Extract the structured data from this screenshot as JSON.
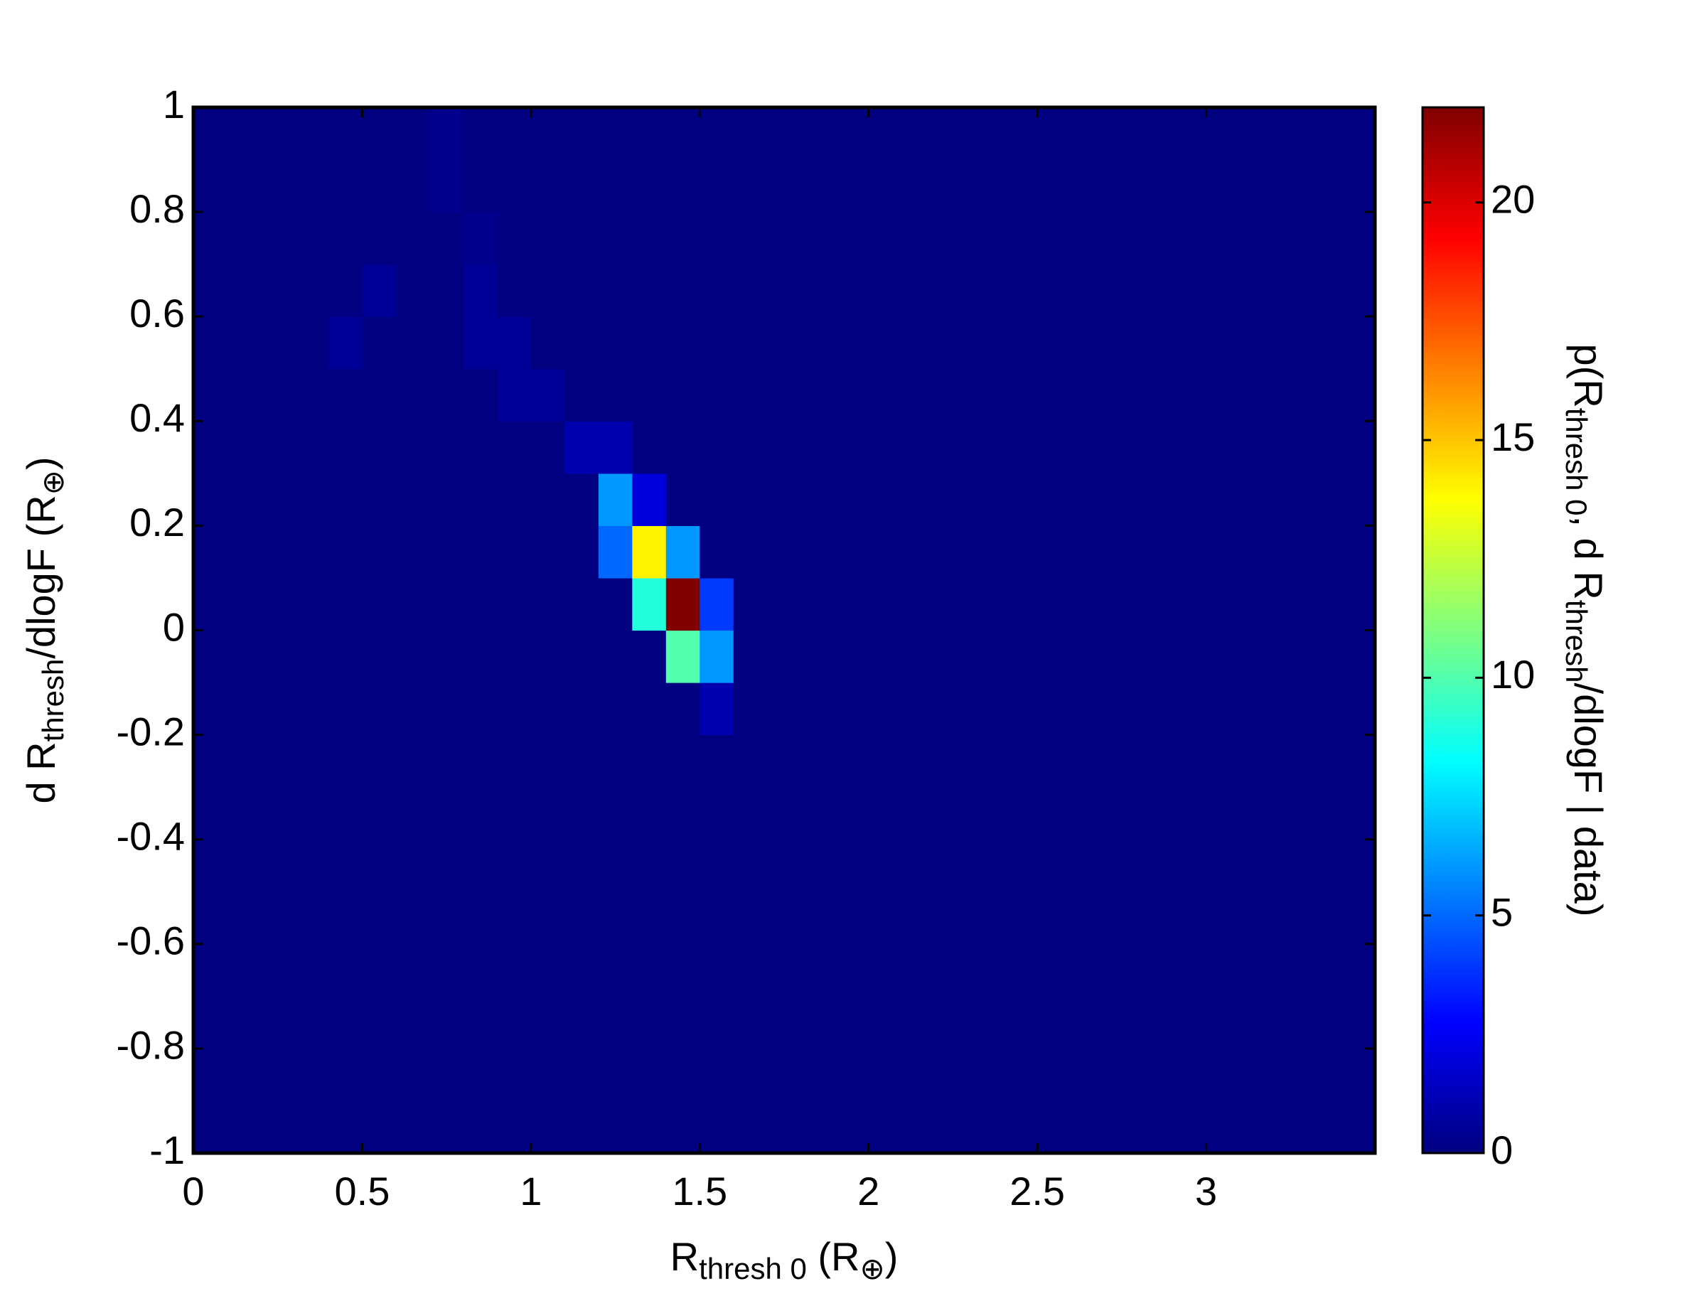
{
  "chart_data": {
    "type": "heatmap",
    "xlabel": [
      "R",
      "thresh 0",
      " (R",
      "⊕",
      ")"
    ],
    "ylabel": [
      "d R",
      "thresh",
      "/dlogF (R",
      "⊕",
      ")"
    ],
    "colorbar_label": [
      "p(R",
      "thresh 0",
      ", d R",
      "thresh",
      "/dlogF | data)"
    ],
    "colormap": "jet",
    "xlim": [
      0,
      3.5
    ],
    "xticks": [
      0,
      0.5,
      1,
      1.5,
      2,
      2.5,
      3
    ],
    "ylim": [
      -1,
      1
    ],
    "yticks": [
      -1,
      -0.8,
      -0.6,
      -0.4,
      -0.2,
      0,
      0.2,
      0.4,
      0.6,
      0.8,
      1
    ],
    "clim": [
      0,
      22
    ],
    "cticks": [
      0,
      5,
      10,
      15,
      20
    ],
    "xbins": [
      0,
      0.1,
      0.2,
      0.3,
      0.4,
      0.5,
      0.6,
      0.7,
      0.8,
      0.9,
      1,
      1.1,
      1.2,
      1.3,
      1.4,
      1.5,
      1.6,
      1.7,
      1.8,
      1.9,
      2,
      2.1,
      2.2,
      2.3,
      2.4,
      2.5,
      2.6,
      2.7,
      2.8,
      2.9,
      3,
      3.1,
      3.2,
      3.3,
      3.4,
      3.5
    ],
    "ybins": [
      -1,
      -0.9,
      -0.8,
      -0.7,
      -0.6,
      -0.5,
      -0.4,
      -0.3,
      -0.2,
      -0.1,
      0,
      0.1,
      0.2,
      0.3,
      0.4,
      0.5,
      0.6,
      0.7,
      0.8,
      0.9,
      1
    ],
    "z": [
      [
        0,
        0,
        0,
        0,
        0,
        0,
        0,
        0,
        0,
        0,
        0,
        0,
        0,
        0,
        0,
        0,
        0,
        0,
        0,
        0,
        0,
        0,
        0,
        0,
        0,
        0,
        0,
        0,
        0,
        0,
        0,
        0,
        0,
        0,
        0
      ],
      [
        0,
        0,
        0,
        0,
        0,
        0,
        0,
        0,
        0,
        0,
        0,
        0,
        0,
        0,
        0,
        0,
        0,
        0,
        0,
        0,
        0,
        0,
        0,
        0,
        0,
        0,
        0,
        0,
        0,
        0,
        0,
        0,
        0,
        0,
        0
      ],
      [
        0,
        0,
        0,
        0,
        0,
        0,
        0,
        0,
        0,
        0,
        0,
        0,
        0,
        0,
        0,
        0,
        0,
        0,
        0,
        0,
        0,
        0,
        0,
        0,
        0,
        0,
        0,
        0,
        0,
        0,
        0,
        0,
        0,
        0,
        0
      ],
      [
        0,
        0,
        0,
        0,
        0,
        0,
        0,
        0,
        0,
        0,
        0,
        0,
        0,
        0,
        0,
        0,
        0,
        0,
        0,
        0,
        0,
        0,
        0,
        0,
        0,
        0,
        0,
        0,
        0,
        0,
        0,
        0,
        0,
        0,
        0
      ],
      [
        0,
        0,
        0,
        0,
        0,
        0,
        0,
        0,
        0,
        0,
        0,
        0,
        0,
        0,
        0,
        0,
        0,
        0,
        0,
        0,
        0,
        0,
        0,
        0,
        0,
        0,
        0,
        0,
        0,
        0,
        0,
        0,
        0,
        0,
        0
      ],
      [
        0,
        0,
        0,
        0,
        0,
        0,
        0,
        0,
        0,
        0,
        0,
        0,
        0,
        0,
        0,
        0,
        0,
        0,
        0,
        0,
        0,
        0,
        0,
        0,
        0,
        0,
        0,
        0,
        0,
        0,
        0,
        0,
        0,
        0,
        0
      ],
      [
        0,
        0,
        0,
        0,
        0,
        0,
        0,
        0,
        0,
        0,
        0,
        0,
        0,
        0,
        0,
        0,
        0,
        0,
        0,
        0,
        0,
        0,
        0,
        0,
        0,
        0,
        0,
        0,
        0,
        0,
        0,
        0,
        0,
        0,
        0
      ],
      [
        0,
        0,
        0,
        0,
        0,
        0,
        0,
        0,
        0,
        0,
        0,
        0,
        0,
        0,
        0,
        0,
        0,
        0,
        0,
        0,
        0,
        0,
        0,
        0,
        0,
        0,
        0,
        0,
        0,
        0,
        0,
        0,
        0,
        0,
        0
      ],
      [
        0,
        0,
        0,
        0,
        0,
        0,
        0,
        0,
        0,
        0,
        0,
        0,
        0,
        0,
        0,
        1,
        0,
        0,
        0,
        0,
        0,
        0,
        0,
        0,
        0,
        0,
        0,
        0,
        0,
        0,
        0,
        0,
        0,
        0,
        0
      ],
      [
        0,
        0,
        0,
        0,
        0,
        0,
        0,
        0,
        0,
        0,
        0,
        0,
        0,
        0,
        10,
        6,
        0,
        0,
        0,
        0,
        0,
        0,
        0,
        0,
        0,
        0,
        0,
        0,
        0,
        0,
        0,
        0,
        0,
        0,
        0
      ],
      [
        0,
        0,
        0,
        0,
        0,
        0,
        0,
        0,
        0,
        0,
        0,
        0,
        0,
        9,
        22,
        4,
        0,
        0,
        0,
        0,
        0,
        0,
        0,
        0,
        0,
        0,
        0,
        0,
        0,
        0,
        0,
        0,
        0,
        0,
        0
      ],
      [
        0,
        0,
        0,
        0,
        0,
        0,
        0,
        0,
        0,
        0,
        0,
        0,
        5,
        14,
        6,
        0,
        0,
        0,
        0,
        0,
        0,
        0,
        0,
        0,
        0,
        0,
        0,
        0,
        0,
        0,
        0,
        0,
        0,
        0,
        0
      ],
      [
        0,
        0,
        0,
        0,
        0,
        0,
        0,
        0,
        0,
        0,
        0,
        0,
        6,
        2,
        0,
        0,
        0,
        0,
        0,
        0,
        0,
        0,
        0,
        0,
        0,
        0,
        0,
        0,
        0,
        0,
        0,
        0,
        0,
        0,
        0
      ],
      [
        0,
        0,
        0,
        0,
        0,
        0,
        0,
        0,
        0,
        0,
        0,
        1,
        1,
        0,
        0,
        0,
        0,
        0,
        0,
        0,
        0,
        0,
        0,
        0,
        0,
        0,
        0,
        0,
        0,
        0,
        0,
        0,
        0,
        0,
        0
      ],
      [
        0,
        0,
        0,
        0,
        0,
        0,
        0,
        0,
        0,
        0.5,
        0.5,
        0,
        0,
        0,
        0,
        0,
        0,
        0,
        0,
        0,
        0,
        0,
        0,
        0,
        0,
        0,
        0,
        0,
        0,
        0,
        0,
        0,
        0,
        0,
        0
      ],
      [
        0,
        0,
        0,
        0,
        0.5,
        0,
        0,
        0,
        0.5,
        0.5,
        0,
        0,
        0,
        0,
        0,
        0,
        0,
        0,
        0,
        0,
        0,
        0,
        0,
        0,
        0,
        0,
        0,
        0,
        0,
        0,
        0,
        0,
        0,
        0,
        0
      ],
      [
        0,
        0,
        0,
        0,
        0,
        0.5,
        0,
        0,
        0.5,
        0,
        0,
        0,
        0,
        0,
        0,
        0,
        0,
        0,
        0,
        0,
        0,
        0,
        0,
        0,
        0,
        0,
        0,
        0,
        0,
        0,
        0,
        0,
        0,
        0,
        0
      ],
      [
        0,
        0,
        0,
        0,
        0,
        0,
        0,
        0,
        0.3,
        0,
        0,
        0,
        0,
        0,
        0,
        0,
        0,
        0,
        0,
        0,
        0,
        0,
        0,
        0,
        0,
        0,
        0,
        0,
        0,
        0,
        0,
        0,
        0,
        0,
        0
      ],
      [
        0,
        0,
        0,
        0,
        0,
        0,
        0,
        0.3,
        0,
        0,
        0,
        0,
        0,
        0,
        0,
        0,
        0,
        0,
        0,
        0,
        0,
        0,
        0,
        0,
        0,
        0,
        0,
        0,
        0,
        0,
        0,
        0,
        0,
        0,
        0
      ],
      [
        0,
        0,
        0,
        0,
        0,
        0,
        0,
        0.3,
        0,
        0,
        0,
        0,
        0,
        0,
        0,
        0,
        0,
        0,
        0,
        0,
        0,
        0,
        0,
        0,
        0,
        0,
        0,
        0,
        0,
        0,
        0,
        0,
        0,
        0,
        0
      ]
    ]
  }
}
